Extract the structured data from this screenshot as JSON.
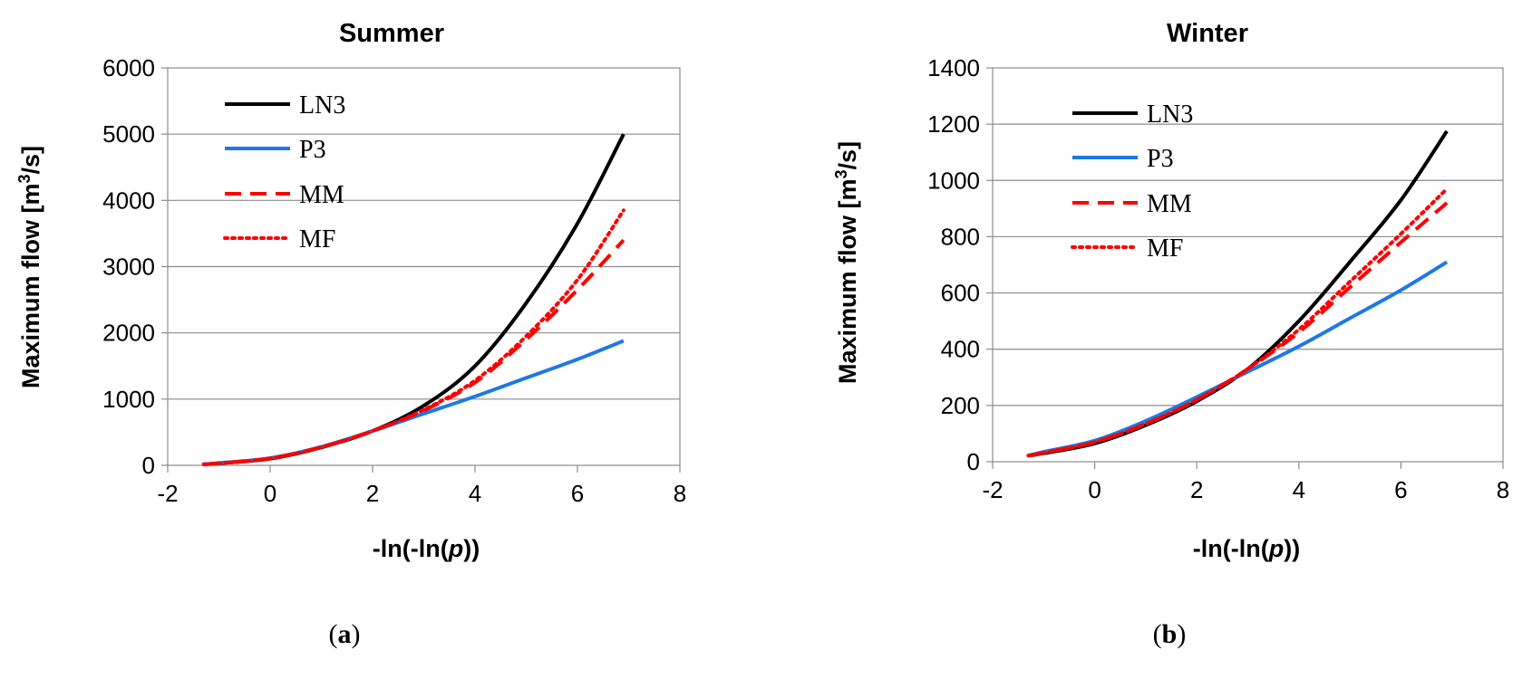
{
  "chart_data": [
    {
      "type": "line",
      "panel": "a",
      "caption": {
        "open": "(",
        "letter": "a",
        "close": ")"
      },
      "title": "Summer",
      "ylabel": {
        "main": "Maximum flow [m",
        "sup": "3",
        "tail": "/s]"
      },
      "xlabel": {
        "pre": "-ln(-ln(",
        "italic": "p",
        "post": "))"
      },
      "xlim": [
        -2,
        8
      ],
      "ylim": [
        0,
        6000
      ],
      "xticks": [
        -2,
        0,
        2,
        4,
        6,
        8
      ],
      "yticks": [
        0,
        1000,
        2000,
        3000,
        4000,
        5000,
        6000
      ],
      "legend_position": "top-left",
      "series": [
        {
          "name": "LN3",
          "color": "#000000",
          "dash": "solid",
          "x": [
            -1.3,
            -1,
            0,
            1,
            2,
            3,
            4,
            5,
            6,
            6.9
          ],
          "y": [
            15,
            30,
            100,
            270,
            520,
            900,
            1500,
            2450,
            3650,
            5000
          ]
        },
        {
          "name": "P3",
          "color": "#1e78e6",
          "dash": "solid",
          "x": [
            -1.3,
            -1,
            0,
            1,
            2,
            3,
            4,
            5,
            6,
            6.9
          ],
          "y": [
            15,
            35,
            110,
            280,
            520,
            780,
            1040,
            1320,
            1600,
            1880
          ]
        },
        {
          "name": "MM",
          "color": "#ff0000",
          "dash": "dashed",
          "x": [
            -1.3,
            -1,
            0,
            1,
            2,
            3,
            4,
            5,
            6,
            6.9
          ],
          "y": [
            15,
            30,
            105,
            275,
            520,
            830,
            1250,
            1900,
            2650,
            3400
          ]
        },
        {
          "name": "MF",
          "color": "#ff0000",
          "dash": "dotted",
          "x": [
            -1.3,
            -1,
            0,
            1,
            2,
            3,
            4,
            5,
            6,
            6.9
          ],
          "y": [
            15,
            30,
            105,
            275,
            520,
            840,
            1280,
            1950,
            2800,
            3850
          ]
        }
      ]
    },
    {
      "type": "line",
      "panel": "b",
      "caption": {
        "open": "(",
        "letter": "b",
        "close": ")"
      },
      "title": "Winter",
      "ylabel": {
        "main": "Maximum flow [m",
        "sup": "3",
        "tail": "/s]"
      },
      "xlabel": {
        "pre": "-ln(-ln(",
        "italic": "p",
        "post": "))"
      },
      "xlim": [
        -2,
        8
      ],
      "ylim": [
        0,
        1400
      ],
      "xticks": [
        -2,
        0,
        2,
        4,
        6,
        8
      ],
      "yticks": [
        0,
        200,
        400,
        600,
        800,
        1000,
        1200,
        1400
      ],
      "legend_position": "top-left",
      "series": [
        {
          "name": "LN3",
          "color": "#000000",
          "dash": "solid",
          "x": [
            -1.3,
            -1,
            0,
            1,
            2,
            3,
            4,
            5,
            6,
            6.9
          ],
          "y": [
            22,
            30,
            65,
            130,
            215,
            330,
            500,
            710,
            930,
            1175
          ]
        },
        {
          "name": "P3",
          "color": "#1e78e6",
          "dash": "solid",
          "x": [
            -1.3,
            -1,
            0,
            1,
            2,
            3,
            4,
            5,
            6,
            6.9
          ],
          "y": [
            22,
            35,
            75,
            145,
            230,
            320,
            410,
            510,
            610,
            710
          ]
        },
        {
          "name": "MM",
          "color": "#ff0000",
          "dash": "dashed",
          "x": [
            -1.3,
            -1,
            0,
            1,
            2,
            3,
            4,
            5,
            6,
            6.9
          ],
          "y": [
            22,
            32,
            70,
            135,
            220,
            330,
            460,
            620,
            780,
            920
          ]
        },
        {
          "name": "MF",
          "color": "#ff0000",
          "dash": "dotted",
          "x": [
            -1.3,
            -1,
            0,
            1,
            2,
            3,
            4,
            5,
            6,
            6.9
          ],
          "y": [
            22,
            32,
            70,
            135,
            220,
            330,
            470,
            640,
            810,
            970
          ]
        }
      ]
    }
  ]
}
